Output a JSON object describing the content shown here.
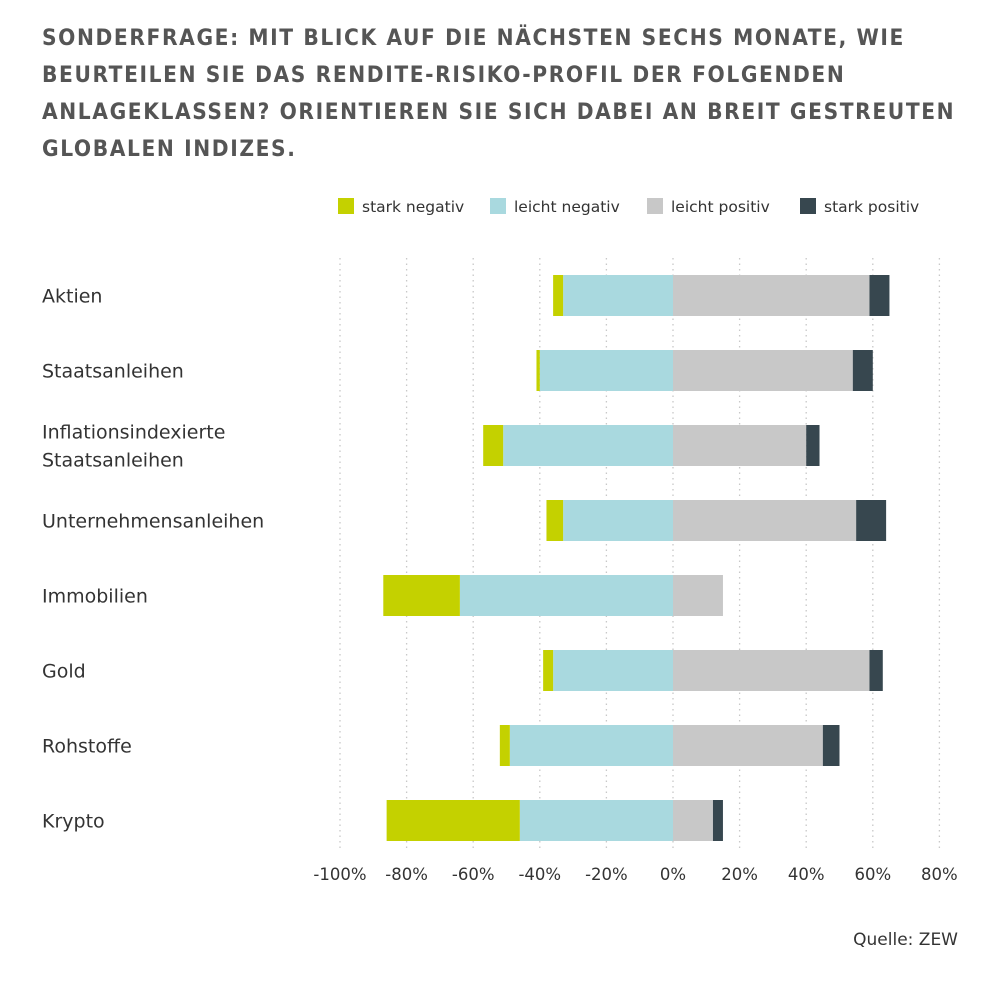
{
  "title": "SONDERFRAGE: MIT BLICK AUF DIE NÄCHSTEN SECHS MONATE, WIE BEURTEILEN SIE DAS RENDITE-RISIKO-PROFIL DER FOLGENDEN ANLAGEKLASSEN? ORIENTIEREN SIE SICH DABEI AN BREIT GESTREUTEN GLOBALEN INDIZES.",
  "source": "Quelle: ZEW",
  "chart_data": {
    "type": "bar",
    "orientation": "horizontal",
    "stacked": "diverging",
    "categories": [
      [
        "Aktien"
      ],
      [
        "Staatsanleihen"
      ],
      [
        "Inflationsindexierte",
        "Staatsanleihen"
      ],
      [
        "Unternehmensanleihen"
      ],
      [
        "Immobilien"
      ],
      [
        "Gold"
      ],
      [
        "Rohstoffe"
      ],
      [
        "Krypto"
      ]
    ],
    "series": [
      {
        "name": "stark negativ",
        "color": "#c4d100",
        "values": [
          -3,
          -1,
          -6,
          -5,
          -23,
          -3,
          -3,
          -40
        ]
      },
      {
        "name": "leicht negativ",
        "color": "#a9d9df",
        "values": [
          -33,
          -40,
          -51,
          -33,
          -64,
          -36,
          -49,
          -46
        ]
      },
      {
        "name": "leicht positiv",
        "color": "#c8c8c8",
        "values": [
          59,
          54,
          40,
          55,
          15,
          59,
          45,
          12
        ]
      },
      {
        "name": "stark positiv",
        "color": "#37474f",
        "values": [
          6,
          6,
          4,
          9,
          0,
          4,
          5,
          3
        ]
      }
    ],
    "xlim": [
      -100,
      80
    ],
    "xticks": [
      -100,
      -80,
      -60,
      -40,
      -20,
      0,
      20,
      40,
      60,
      80
    ],
    "xtick_labels": [
      "-100%",
      "-80%",
      "-60%",
      "-40%",
      "-20%",
      "0%",
      "20%",
      "40%",
      "60%",
      "80%"
    ],
    "grid": "vertical dotted",
    "legend": "top-right"
  }
}
